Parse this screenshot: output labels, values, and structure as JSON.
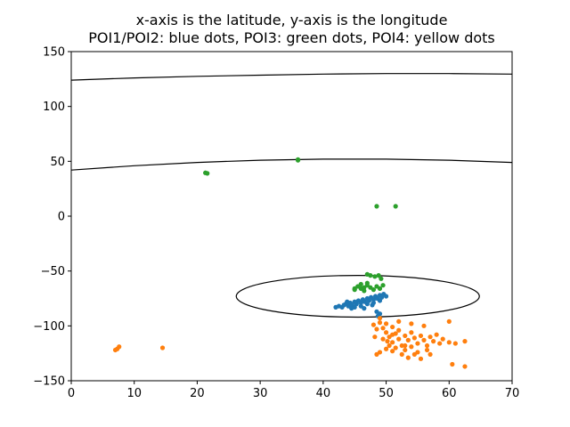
{
  "chart_data": {
    "type": "scatter",
    "title_lines": [
      "x-axis is the latitude, y-axis is the longitude",
      "POI1/POI2: blue dots, POI3: green dots, POI4: yellow dots"
    ],
    "xlabel": "",
    "ylabel": "",
    "xlim": [
      0,
      70
    ],
    "ylim": [
      -150,
      150
    ],
    "x_ticks": [
      0,
      10,
      20,
      30,
      40,
      50,
      60,
      70
    ],
    "y_ticks": [
      -150,
      -100,
      -50,
      0,
      50,
      100,
      150
    ],
    "y_tick_labels": [
      "−150",
      "−100",
      "−50",
      "0",
      "50",
      "100",
      "150"
    ],
    "grid": false,
    "legend": "none",
    "colors": {
      "blue": "#1f77b4",
      "orange": "#ff7f0e",
      "green": "#2ca02c",
      "curve": "#000000"
    },
    "series": [
      {
        "color_key": "blue",
        "points": [
          [
            42,
            -83
          ],
          [
            42.5,
            -82
          ],
          [
            43,
            -83
          ],
          [
            43.3,
            -81
          ],
          [
            43.6,
            -80
          ],
          [
            44,
            -82
          ],
          [
            44.3,
            -79
          ],
          [
            44.6,
            -81
          ],
          [
            45,
            -78
          ],
          [
            45,
            -83
          ],
          [
            45.3,
            -80
          ],
          [
            45.6,
            -77
          ],
          [
            46,
            -79
          ],
          [
            46,
            -82
          ],
          [
            46.3,
            -76
          ],
          [
            46.6,
            -78
          ],
          [
            47,
            -75
          ],
          [
            47,
            -80
          ],
          [
            47.3,
            -77
          ],
          [
            47.6,
            -74
          ],
          [
            48,
            -76
          ],
          [
            48,
            -79
          ],
          [
            48.3,
            -73
          ],
          [
            48.6,
            -75
          ],
          [
            49,
            -72
          ],
          [
            49,
            -77
          ],
          [
            49.3,
            -74
          ],
          [
            49.6,
            -71
          ],
          [
            50,
            -73
          ],
          [
            48.5,
            -87
          ],
          [
            49,
            -89
          ],
          [
            48.7,
            -91
          ],
          [
            44.5,
            -84
          ],
          [
            46.5,
            -84
          ],
          [
            43.8,
            -78
          ],
          [
            47.8,
            -81
          ]
        ]
      },
      {
        "color_key": "orange",
        "points": [
          [
            7,
            -122
          ],
          [
            7.3,
            -121
          ],
          [
            7.6,
            -119
          ],
          [
            14.5,
            -120
          ],
          [
            48,
            -99
          ],
          [
            48.5,
            -103
          ],
          [
            49,
            -97
          ],
          [
            49.5,
            -102
          ],
          [
            50,
            -106
          ],
          [
            50,
            -98
          ],
          [
            50.5,
            -110
          ],
          [
            51,
            -101
          ],
          [
            51,
            -115
          ],
          [
            51.5,
            -107
          ],
          [
            52,
            -112
          ],
          [
            52,
            -104
          ],
          [
            52.5,
            -118
          ],
          [
            53,
            -109
          ],
          [
            53,
            -122
          ],
          [
            53.5,
            -113
          ],
          [
            54,
            -106
          ],
          [
            54,
            -119
          ],
          [
            54.5,
            -111
          ],
          [
            55,
            -116
          ],
          [
            55,
            -124
          ],
          [
            55.5,
            -109
          ],
          [
            56,
            -113
          ],
          [
            56.5,
            -118
          ],
          [
            57,
            -110
          ],
          [
            57.5,
            -114
          ],
          [
            58,
            -108
          ],
          [
            58.5,
            -116
          ],
          [
            59,
            -112
          ],
          [
            60,
            -115
          ],
          [
            49,
            -124
          ],
          [
            48.5,
            -126
          ],
          [
            50,
            -121
          ],
          [
            51.5,
            -120
          ],
          [
            52.5,
            -126
          ],
          [
            53.5,
            -129
          ],
          [
            55.5,
            -130
          ],
          [
            54.5,
            -126
          ],
          [
            49.5,
            -112
          ],
          [
            50.5,
            -118
          ],
          [
            51,
            -108
          ],
          [
            52,
            -96
          ],
          [
            54,
            -98
          ],
          [
            56,
            -100
          ],
          [
            60,
            -96
          ],
          [
            61,
            -116
          ],
          [
            62.5,
            -114
          ],
          [
            60.5,
            -135
          ],
          [
            62.5,
            -137
          ],
          [
            49,
            -93
          ],
          [
            51,
            -123
          ],
          [
            53,
            -118
          ],
          [
            56.5,
            -122
          ],
          [
            57,
            -126
          ],
          [
            48.2,
            -110
          ],
          [
            50.2,
            -114
          ]
        ]
      },
      {
        "color_key": "green",
        "points": [
          [
            21.3,
            39.5
          ],
          [
            21.6,
            39
          ],
          [
            36,
            51
          ],
          [
            36,
            51.6
          ],
          [
            48.5,
            9
          ],
          [
            51.5,
            9
          ],
          [
            47,
            -53
          ],
          [
            47.5,
            -54
          ],
          [
            48.2,
            -55
          ],
          [
            48.8,
            -54
          ],
          [
            49.2,
            -57
          ],
          [
            45,
            -66
          ],
          [
            45.5,
            -64
          ],
          [
            46,
            -66
          ],
          [
            46.5,
            -65
          ],
          [
            47,
            -63
          ],
          [
            47.5,
            -65
          ],
          [
            48,
            -67
          ],
          [
            48.5,
            -64
          ],
          [
            49,
            -66
          ],
          [
            49.5,
            -63
          ],
          [
            46,
            -62
          ],
          [
            47,
            -61
          ],
          [
            45,
            -67
          ],
          [
            46.5,
            -68
          ]
        ]
      }
    ],
    "curves": [
      {
        "type": "line",
        "x": [
          0,
          10,
          20,
          30,
          40,
          50,
          60,
          70
        ],
        "y": [
          124,
          126,
          127.5,
          128.5,
          129.5,
          130,
          130,
          129.5
        ]
      },
      {
        "type": "line",
        "x": [
          0,
          10,
          20,
          30,
          40,
          50,
          60,
          70
        ],
        "y": [
          42,
          46,
          49,
          51,
          52,
          52,
          51,
          49
        ]
      },
      {
        "type": "ellipse",
        "center": [
          45.5,
          -73
        ],
        "rx": 19.3,
        "ry": 19
      }
    ]
  }
}
